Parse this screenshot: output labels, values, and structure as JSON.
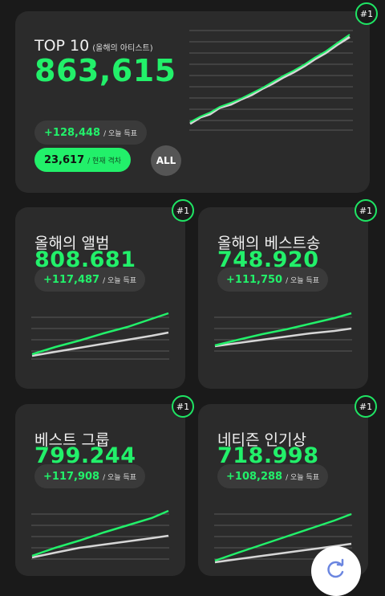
{
  "top": {
    "title": "TOP 10",
    "subtitle": "(올해의 아티스트)",
    "value": "863,615",
    "today_value": "+128,448",
    "today_label": "/ 오늘 득표",
    "gap_value": "23,617",
    "gap_label": "/ 현재 격차",
    "all_label": "ALL",
    "rank": "#1"
  },
  "cards": [
    {
      "title": "올해의 앨범",
      "value": "808.681",
      "today_value": "+117,487",
      "today_label": "/ 오늘 득표",
      "rank": "#1"
    },
    {
      "title": "올해의 베스트송",
      "value": "748.920",
      "today_value": "+111,750",
      "today_label": "/ 오늘 득표",
      "rank": "#1"
    },
    {
      "title": "베스트 그룹",
      "value": "799.244",
      "today_value": "+117,908",
      "today_label": "/ 오늘 득표",
      "rank": "#1"
    },
    {
      "title": "네티즌 인기상",
      "value": "718.998",
      "today_value": "+108,288",
      "today_label": "/ 오늘 득표",
      "rank": "#1"
    }
  ],
  "colors": {
    "accent": "#22f06a",
    "secondary_line": "#d6d6d6",
    "card": "#2b2b2b",
    "background": "#1a1a1a"
  },
  "fab_icon": "refresh-icon"
}
